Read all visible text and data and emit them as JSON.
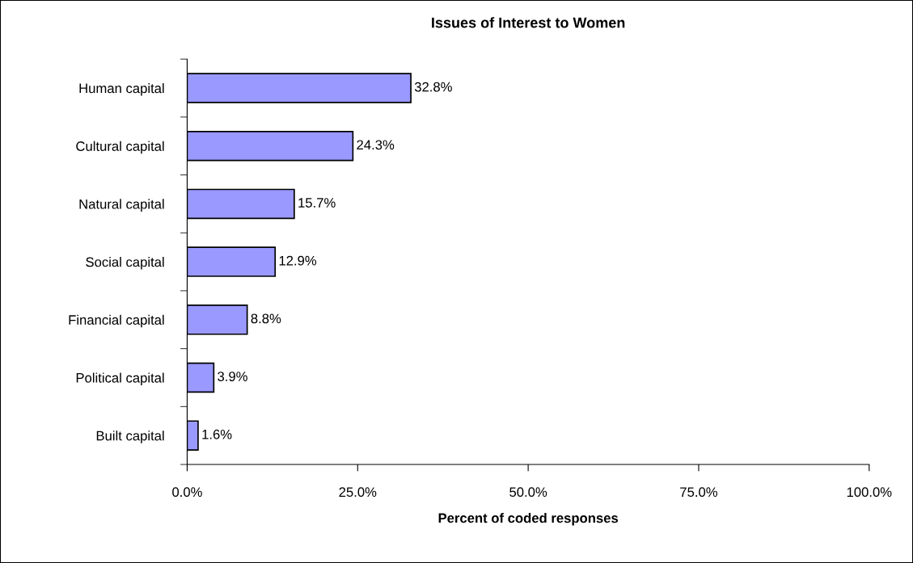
{
  "chart_data": {
    "type": "bar",
    "orientation": "horizontal",
    "title": "Issues of Interest to Women",
    "xlabel": "Percent of coded responses",
    "categories": [
      "Human capital",
      "Cultural capital",
      "Natural capital",
      "Social capital",
      "Financial capital",
      "Political capital",
      "Built capital"
    ],
    "values": [
      32.8,
      24.3,
      15.7,
      12.9,
      8.8,
      3.9,
      1.6
    ],
    "value_labels": [
      "32.8%",
      "24.3%",
      "15.7%",
      "12.9%",
      "8.8%",
      "3.9%",
      "1.6%"
    ],
    "color": "#9999ff",
    "xlim": [
      0,
      100
    ],
    "xticks": [
      {
        "value": 0,
        "label": "0.0%"
      },
      {
        "value": 25,
        "label": "25.0%"
      },
      {
        "value": 50,
        "label": "50.0%"
      },
      {
        "value": 75,
        "label": "75.0%"
      },
      {
        "value": 100,
        "label": "100.0%"
      }
    ],
    "grid": false,
    "legend": false
  }
}
